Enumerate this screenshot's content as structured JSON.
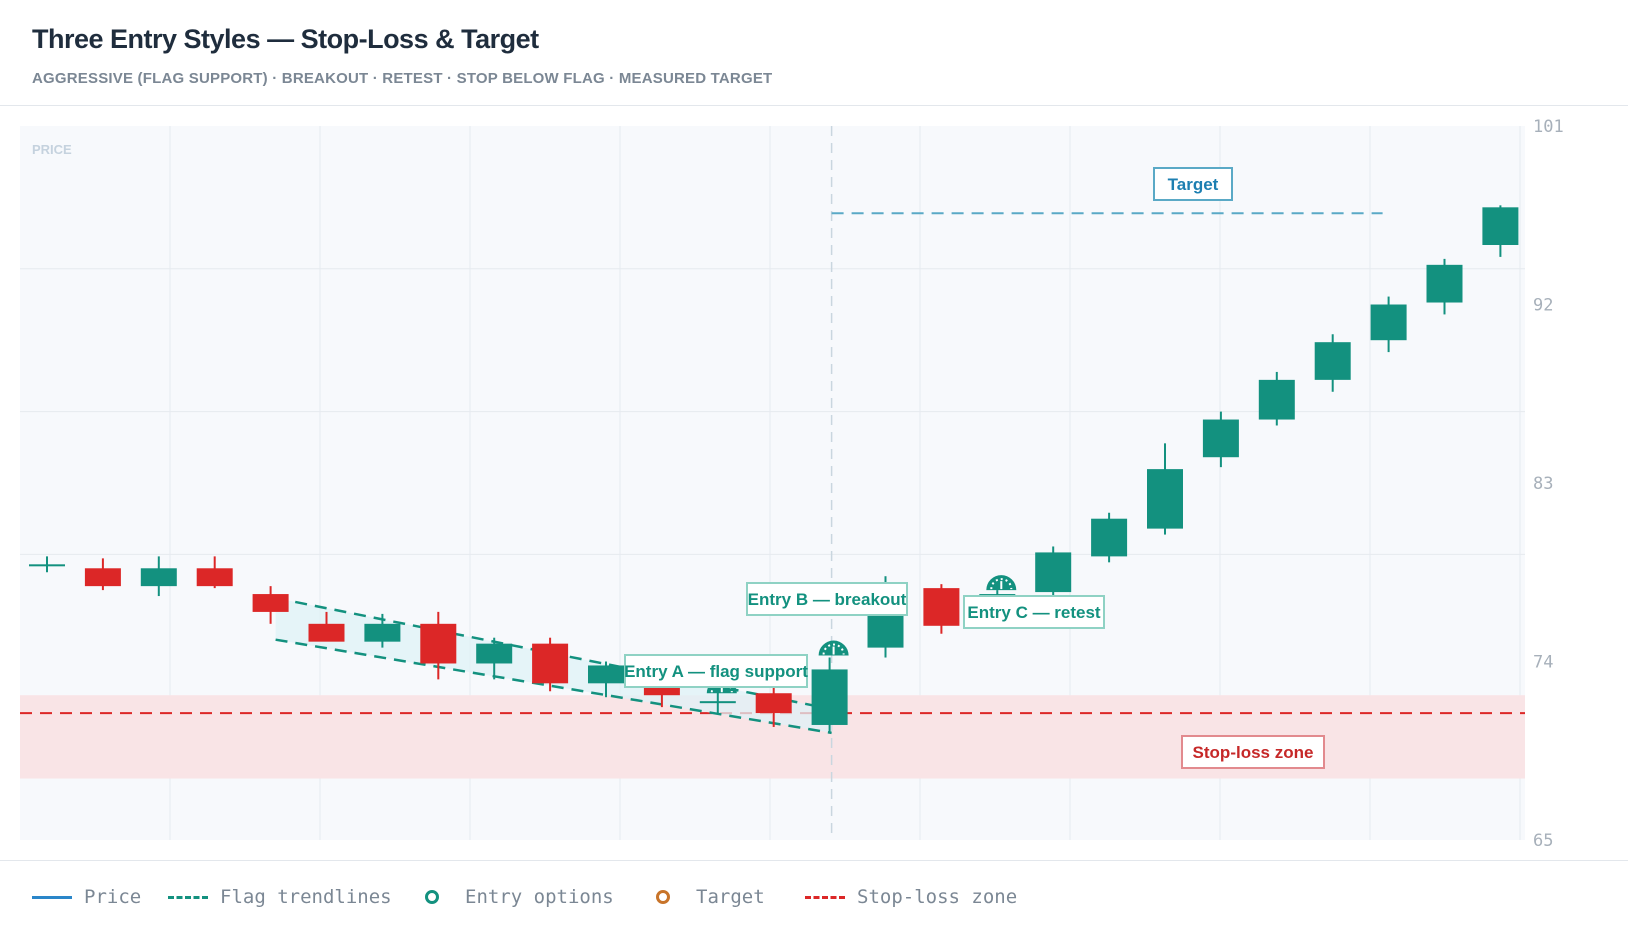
{
  "header": {
    "title": "Three Entry Styles — Stop-Loss & Target",
    "subtitle": "AGGRESSIVE (FLAG SUPPORT) · BREAKOUT · RETEST · STOP BELOW FLAG · MEASURED TARGET"
  },
  "colors": {
    "bull": "#13917f",
    "bear": "#dc2727",
    "target": "#5aa9c6",
    "stop": "#dc2727",
    "grid": "#e6eaef",
    "plot_bg": "#f7f9fc",
    "axis_text": "#a7b0ba"
  },
  "chart_data": {
    "type": "candlestick",
    "title": "Three Entry Styles — Stop-Loss & Target",
    "ylabel": "PRICE",
    "ylim": [
      65,
      101
    ],
    "y_ticks": [
      101,
      92,
      83,
      74,
      65
    ],
    "grid": true,
    "legend_position": "bottom",
    "candles": [
      {
        "i": 0,
        "open": 78.9,
        "high": 79.3,
        "low": 78.5,
        "close": 78.9
      },
      {
        "i": 1,
        "open": 78.7,
        "high": 79.2,
        "low": 77.6,
        "close": 77.8
      },
      {
        "i": 2,
        "open": 77.8,
        "high": 79.3,
        "low": 77.3,
        "close": 78.7
      },
      {
        "i": 3,
        "open": 78.7,
        "high": 79.3,
        "low": 77.7,
        "close": 77.8
      },
      {
        "i": 4,
        "open": 77.4,
        "high": 77.8,
        "low": 75.9,
        "close": 76.5
      },
      {
        "i": 5,
        "open": 75.9,
        "high": 76.5,
        "low": 75.1,
        "close": 75.0
      },
      {
        "i": 6,
        "open": 75.0,
        "high": 76.4,
        "low": 74.7,
        "close": 75.9
      },
      {
        "i": 7,
        "open": 75.9,
        "high": 76.5,
        "low": 73.1,
        "close": 73.9
      },
      {
        "i": 8,
        "open": 73.9,
        "high": 75.2,
        "low": 73.1,
        "close": 74.9
      },
      {
        "i": 9,
        "open": 74.9,
        "high": 75.2,
        "low": 72.5,
        "close": 72.9
      },
      {
        "i": 10,
        "open": 72.9,
        "high": 74.0,
        "low": 72.2,
        "close": 73.8
      },
      {
        "i": 11,
        "open": 73.8,
        "high": 74.1,
        "low": 71.7,
        "close": 72.3
      },
      {
        "i": 12,
        "open": 71.9,
        "high": 72.7,
        "low": 71.4,
        "close": 72.0
      },
      {
        "i": 13,
        "open": 72.4,
        "high": 72.8,
        "low": 70.7,
        "close": 71.4
      },
      {
        "i": 14,
        "open": 70.8,
        "high": 74.2,
        "low": 70.4,
        "close": 73.6
      },
      {
        "i": 15,
        "open": 74.7,
        "high": 78.3,
        "low": 74.2,
        "close": 77.6
      },
      {
        "i": 16,
        "open": 77.7,
        "high": 77.9,
        "low": 75.4,
        "close": 75.8
      },
      {
        "i": 17,
        "open": 76.1,
        "high": 77.6,
        "low": 75.9,
        "close": 77.4
      },
      {
        "i": 18,
        "open": 77.5,
        "high": 79.8,
        "low": 77.1,
        "close": 79.5
      },
      {
        "i": 19,
        "open": 79.3,
        "high": 81.5,
        "low": 79.0,
        "close": 81.2
      },
      {
        "i": 20,
        "open": 80.7,
        "high": 85.0,
        "low": 80.4,
        "close": 83.7
      },
      {
        "i": 21,
        "open": 84.3,
        "high": 86.6,
        "low": 83.8,
        "close": 86.2
      },
      {
        "i": 22,
        "open": 86.2,
        "high": 88.6,
        "low": 85.9,
        "close": 88.2
      },
      {
        "i": 23,
        "open": 88.2,
        "high": 90.5,
        "low": 87.6,
        "close": 90.1
      },
      {
        "i": 24,
        "open": 90.2,
        "high": 92.4,
        "low": 89.6,
        "close": 92.0
      },
      {
        "i": 25,
        "open": 92.1,
        "high": 94.3,
        "low": 91.5,
        "close": 94.0
      },
      {
        "i": 26,
        "open": 95.0,
        "high": 97.0,
        "low": 94.4,
        "close": 96.9
      }
    ],
    "flag_trendlines": [
      {
        "from": {
          "i": 4,
          "price": 77.2
        },
        "to": {
          "i": 14,
          "price": 71.6
        }
      },
      {
        "from": {
          "i": 4,
          "price": 75.1
        },
        "to": {
          "i": 14,
          "price": 70.4
        }
      }
    ],
    "breakout_index": 14,
    "target_level": 96.6,
    "stop_level": 71.4,
    "stop_zone": [
      68.1,
      72.3
    ],
    "entries": [
      {
        "name": "Entry A — flag support",
        "i": 12,
        "price": 72.4
      },
      {
        "name": "Entry B — breakout",
        "i": 14,
        "price": 74.3
      },
      {
        "name": "Entry C — retest",
        "i": 17,
        "price": 77.6
      }
    ],
    "annotations": {
      "target": "Target",
      "stop": "Stop-loss zone"
    },
    "legend": [
      "Price",
      "Flag trendlines",
      "Entry options",
      "Target",
      "Stop-loss zone"
    ]
  },
  "legend": {
    "price": "Price",
    "flag": "Flag trendlines",
    "entry": "Entry options",
    "target": "Target",
    "stop": "Stop-loss zone"
  }
}
